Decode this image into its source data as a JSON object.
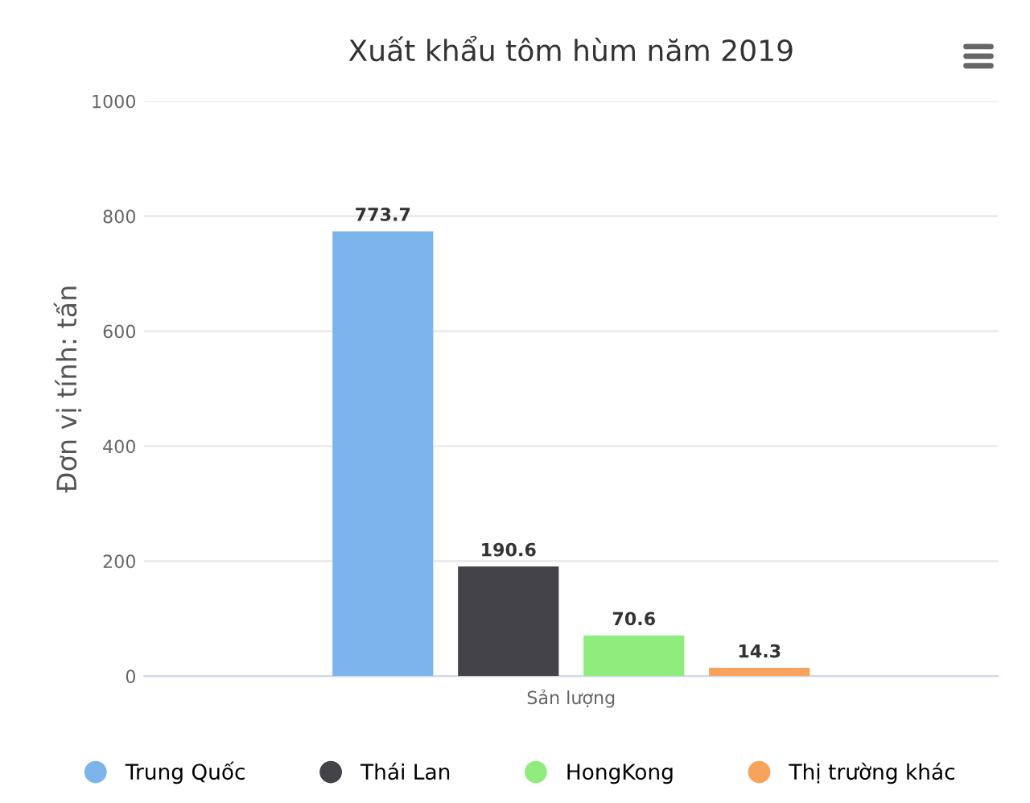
{
  "chart_data": {
    "type": "bar",
    "title": "Xuất khẩu tôm hùm năm 2019",
    "ylabel": "Đơn vị tính: tấn",
    "categories": [
      "Sản lượng"
    ],
    "series": [
      {
        "name": "Trung Quốc",
        "color": "#7cb5ec",
        "values": [
          773.7
        ]
      },
      {
        "name": "Thái Lan",
        "color": "#434348",
        "values": [
          190.6
        ]
      },
      {
        "name": "HongKong",
        "color": "#90ed7d",
        "values": [
          70.6
        ]
      },
      {
        "name": "Thị trường khác",
        "color": "#f7a35c",
        "values": [
          14.3
        ]
      }
    ],
    "ylim": [
      0,
      1000
    ],
    "yticks": [
      0,
      200,
      400,
      600,
      800,
      1000
    ],
    "grid": "y",
    "legend": "bottom",
    "data_labels": true
  }
}
